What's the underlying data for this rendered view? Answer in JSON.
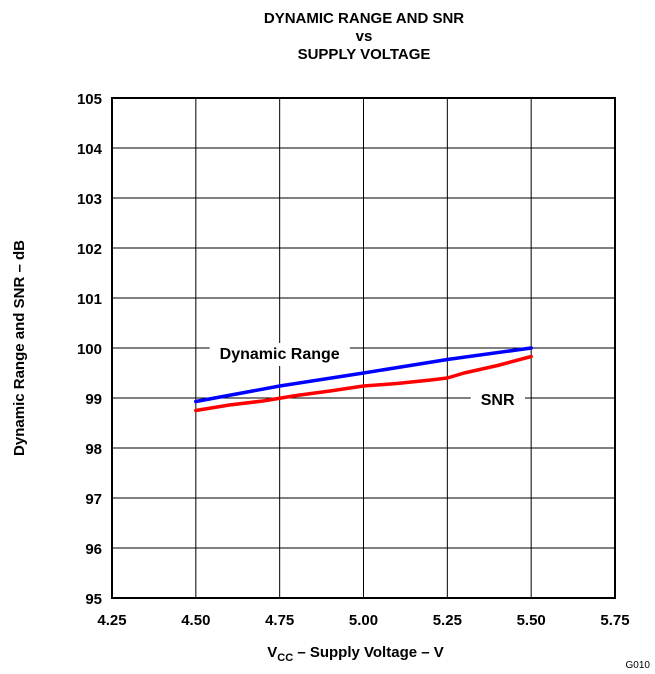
{
  "chart_data": {
    "type": "line",
    "title": [
      "DYNAMIC RANGE AND SNR",
      "vs",
      "SUPPLY VOLTAGE"
    ],
    "xlabel": {
      "main": "V",
      "sub": "CC",
      "rest": " – Supply Voltage – V"
    },
    "ylabel": "Dynamic Range and SNR – dB",
    "xlim": [
      4.25,
      5.75
    ],
    "ylim": [
      95,
      105
    ],
    "x_ticks": [
      4.25,
      4.5,
      4.75,
      5.0,
      5.25,
      5.5,
      5.75
    ],
    "x_tick_labels": [
      "4.25",
      "4.50",
      "4.75",
      "5.00",
      "5.25",
      "5.50",
      "5.75"
    ],
    "y_ticks": [
      95,
      96,
      97,
      98,
      99,
      100,
      101,
      102,
      103,
      104,
      105
    ],
    "y_tick_labels": [
      "95",
      "96",
      "97",
      "98",
      "99",
      "100",
      "101",
      "102",
      "103",
      "104",
      "105"
    ],
    "grid": true,
    "series": [
      {
        "name": "Dynamic Range",
        "color": "#0000ff",
        "x": [
          4.5,
          4.75,
          5.0,
          5.25,
          5.5
        ],
        "y": [
          98.93,
          99.24,
          99.5,
          99.77,
          100.0
        ],
        "label_at": [
          4.75,
          99.9
        ]
      },
      {
        "name": "SNR",
        "color": "#ff0000",
        "x": [
          4.5,
          4.6,
          4.7,
          4.8,
          4.9,
          5.0,
          5.1,
          5.2,
          5.25,
          5.3,
          5.4,
          5.5
        ],
        "y": [
          98.75,
          98.86,
          98.94,
          99.05,
          99.14,
          99.24,
          99.29,
          99.36,
          99.4,
          99.5,
          99.65,
          99.83
        ],
        "label_at": [
          5.4,
          98.98
        ]
      }
    ],
    "code": "G010"
  }
}
